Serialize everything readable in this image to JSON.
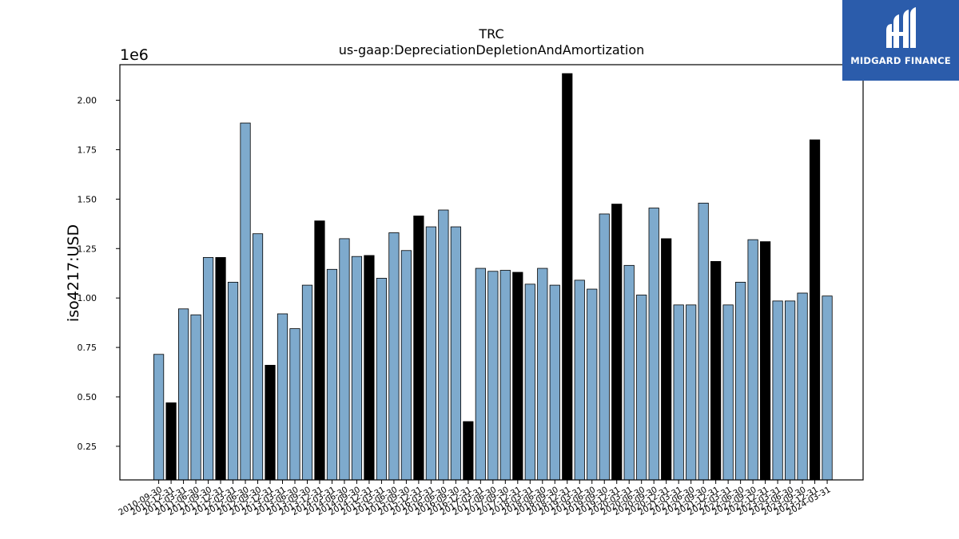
{
  "chart_data": {
    "type": "bar",
    "title": "TRC",
    "subtitle": "us-gaap:DepreciationDepletionAndAmortization",
    "xlabel": "",
    "ylabel": "iso4217:USD",
    "y_offset_label": "1e6",
    "ylim": [
      80000,
      2180000
    ],
    "yticks": [
      250000,
      500000,
      750000,
      1000000,
      1250000,
      1500000,
      1750000,
      2000000
    ],
    "ytick_labels": [
      "0.25",
      "0.50",
      "0.75",
      "1.00",
      "1.25",
      "1.50",
      "1.75",
      "2.00"
    ],
    "grid": false,
    "colors": {
      "quarter": "#7eaacd",
      "annual": "#000000"
    },
    "categories": [
      "2010-09-30",
      "2010-12-31",
      "2011-03-31",
      "2011-06-30",
      "2011-09-30",
      "2011-12-31",
      "2012-03-31",
      "2012-06-30",
      "2012-09-30",
      "2012-12-31",
      "2013-03-31",
      "2013-06-30",
      "2013-09-30",
      "2013-12-31",
      "2014-03-31",
      "2014-06-30",
      "2014-09-30",
      "2014-12-31",
      "2015-03-31",
      "2015-06-30",
      "2015-09-30",
      "2015-12-31",
      "2016-03-31",
      "2016-06-30",
      "2016-09-30",
      "2016-12-31",
      "2017-03-31",
      "2017-06-30",
      "2017-09-30",
      "2017-12-31",
      "2018-03-31",
      "2018-06-30",
      "2018-09-30",
      "2018-12-31",
      "2019-03-31",
      "2019-06-30",
      "2019-09-30",
      "2019-12-31",
      "2020-03-31",
      "2020-06-30",
      "2020-09-30",
      "2020-12-31",
      "2021-03-31",
      "2021-06-30",
      "2021-09-30",
      "2021-12-31",
      "2022-03-31",
      "2022-06-30",
      "2022-09-30",
      "2022-12-31",
      "2023-03-31",
      "2023-06-30",
      "2023-09-30",
      "2023-12-31",
      "2024-03-31"
    ],
    "values": [
      715000,
      470000,
      945000,
      915000,
      1205000,
      1205000,
      1080000,
      1885000,
      1325000,
      660000,
      920000,
      845000,
      1065000,
      1390000,
      1145000,
      1300000,
      1210000,
      1215000,
      1100000,
      1330000,
      1240000,
      1415000,
      1360000,
      1445000,
      1360000,
      375000,
      1150000,
      1135000,
      1140000,
      1130000,
      1070000,
      1150000,
      1065000,
      2135000,
      1090000,
      1045000,
      1425000,
      1475000,
      1165000,
      1015000,
      1455000,
      1300000,
      965000,
      965000,
      1480000,
      1185000,
      965000,
      1080000,
      1295000,
      1285000,
      985000,
      985000,
      1025000,
      1800000,
      1010000
    ],
    "bar_type": [
      "q",
      "a",
      "q",
      "q",
      "q",
      "a",
      "q",
      "q",
      "q",
      "a",
      "q",
      "q",
      "q",
      "a",
      "q",
      "q",
      "q",
      "a",
      "q",
      "q",
      "q",
      "a",
      "q",
      "q",
      "q",
      "a",
      "q",
      "q",
      "q",
      "a",
      "q",
      "q",
      "q",
      "a",
      "q",
      "q",
      "q",
      "a",
      "q",
      "q",
      "q",
      "a",
      "q",
      "q",
      "q",
      "a",
      "q",
      "q",
      "q",
      "a",
      "q",
      "q",
      "q",
      "a",
      "q"
    ]
  },
  "logo": {
    "text": "MIDGARD FINANCE",
    "name": "midgard-finance-logo"
  }
}
